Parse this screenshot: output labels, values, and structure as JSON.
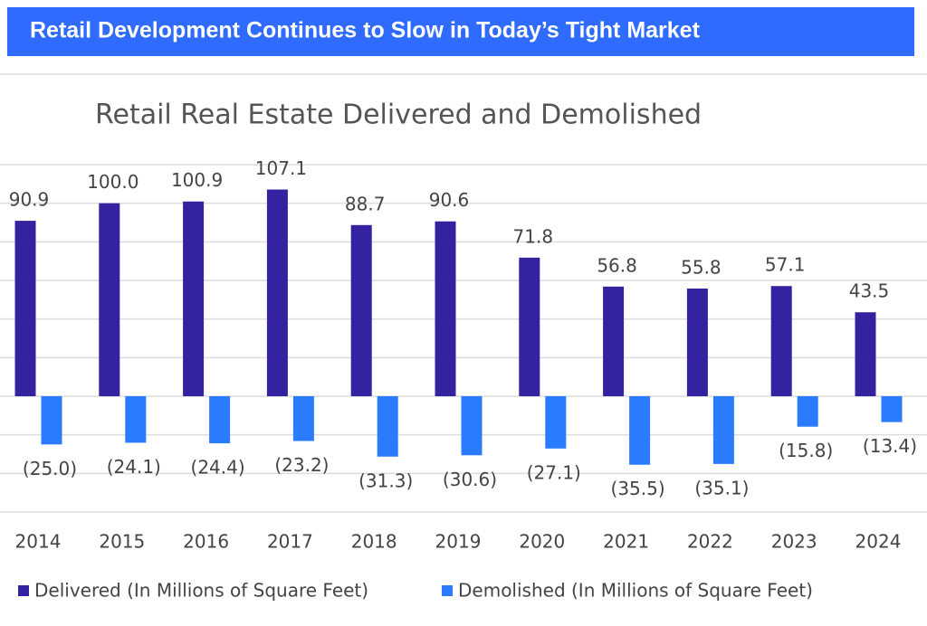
{
  "header": {
    "title": "Retail Development Continues to Slow in Today’s Tight Market"
  },
  "chart_data": {
    "type": "bar",
    "title": "Retail Real Estate Delivered and Demolished",
    "categories": [
      "2014",
      "2015",
      "2016",
      "2017",
      "2018",
      "2019",
      "2020",
      "2021",
      "2022",
      "2023",
      "2024"
    ],
    "series": [
      {
        "name": "Delivered (In Millions of Square Feet)",
        "color": "#3323a0",
        "values": [
          90.9,
          100.0,
          100.9,
          107.1,
          88.7,
          90.6,
          71.8,
          56.8,
          55.8,
          57.1,
          43.5
        ],
        "value_labels": [
          "90.9",
          "100.0",
          "100.9",
          "107.1",
          "88.7",
          "90.6",
          "71.8",
          "56.8",
          "55.8",
          "57.1",
          "43.5"
        ]
      },
      {
        "name": "Demolished (In Millions of Square Feet)",
        "color": "#2b7bff",
        "values": [
          -25.0,
          -24.1,
          -24.4,
          -23.2,
          -31.3,
          -30.6,
          -27.1,
          -35.5,
          -35.1,
          -15.8,
          -13.4
        ],
        "value_labels": [
          "(25.0)",
          "(24.1)",
          "(24.4)",
          "(23.2)",
          "(31.3)",
          "(30.6)",
          "(27.1)",
          "(35.5)",
          "(35.1)",
          "(15.8)",
          "(13.4)"
        ]
      }
    ],
    "ylim": [
      -60,
      120
    ],
    "yticks": [
      -60,
      -40,
      -20,
      0,
      20,
      40,
      60,
      80,
      100,
      120
    ],
    "grid": true,
    "legend": "bottom"
  }
}
